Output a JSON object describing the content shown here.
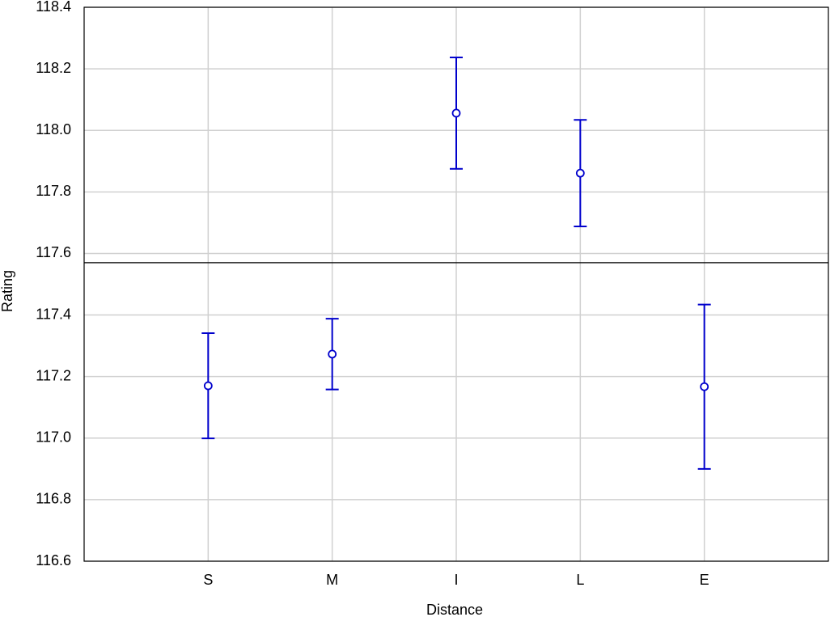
{
  "chart_data": {
    "type": "errorbar",
    "x_label": "Distance",
    "y_label": "Rating",
    "categories": [
      "S",
      "M",
      "I",
      "L",
      "E"
    ],
    "values": [
      117.17,
      117.273,
      118.056,
      117.861,
      117.167
    ],
    "errors": [
      0.171,
      0.115,
      0.181,
      0.173,
      0.267
    ],
    "color": "#0000cc",
    "reference_line": 117.57,
    "ylim": [
      116.6,
      118.4
    ],
    "yticks": [
      116.6,
      116.8,
      {
        "value": 117.0,
        "label": "117.0"
      },
      117.2,
      117.4,
      117.6,
      117.8,
      {
        "value": 118.0,
        "label": "118.0"
      },
      118.2,
      118.4
    ],
    "grid": true
  }
}
